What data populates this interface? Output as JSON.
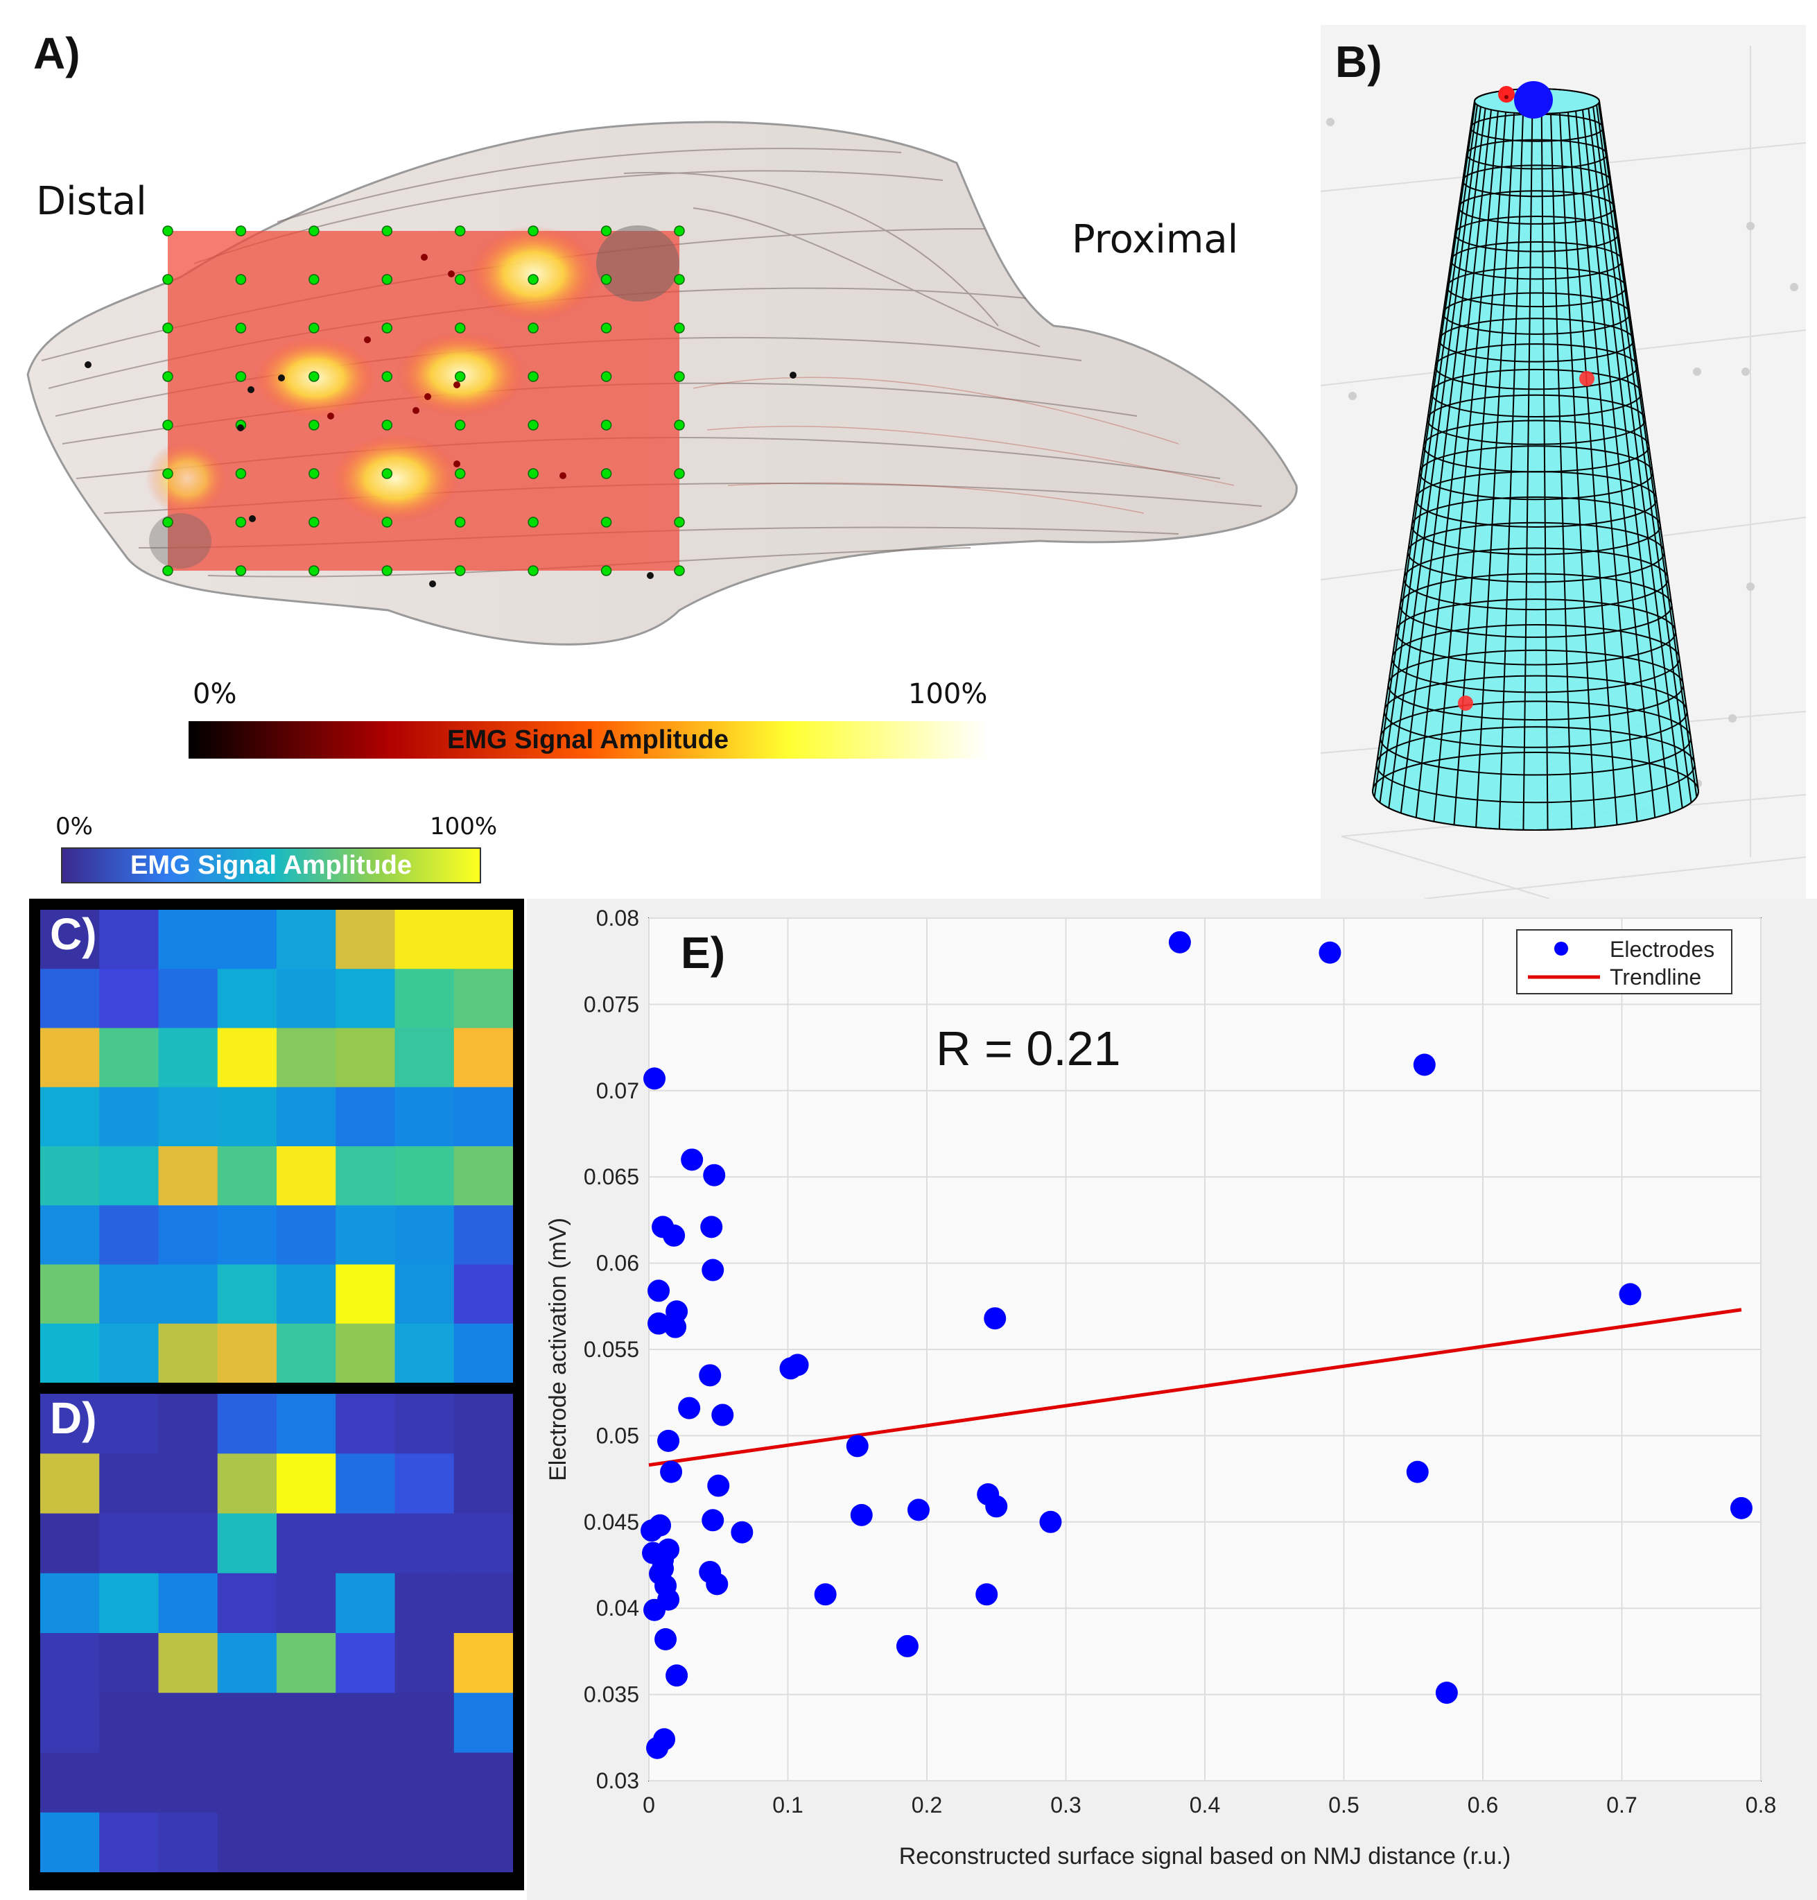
{
  "panel_a": {
    "letter": "A)",
    "distal_label": "Distal",
    "proximal_label": "Proximal",
    "colorbar": {
      "min_label": "0%",
      "max_label": "100%",
      "title": "EMG Signal Amplitude",
      "colors": [
        "#000000",
        "#b00000",
        "#ff5a00",
        "#ffff30",
        "#ffffff"
      ]
    },
    "electrode_grid": {
      "rows": 8,
      "cols": 8,
      "electrode_color": "#00e000"
    }
  },
  "panel_b": {
    "letter": "B)",
    "mesh_color": "#80f0f0"
  },
  "top_colorbar": {
    "min_label": "0%",
    "max_label": "100%",
    "title": "EMG Signal Amplitude",
    "colors": [
      "#3b2a8f",
      "#2f7cf0",
      "#15b8c8",
      "#8fd050",
      "#ffff20"
    ]
  },
  "panel_c": {
    "letter": "C)",
    "type": "heatmap",
    "grid": [
      [
        0.05,
        0.12,
        0.3,
        0.3,
        0.4,
        0.83,
        0.97,
        0.97
      ],
      [
        0.22,
        0.15,
        0.25,
        0.42,
        0.38,
        0.42,
        0.6,
        0.65
      ],
      [
        0.86,
        0.62,
        0.5,
        0.98,
        0.72,
        0.75,
        0.58,
        0.88
      ],
      [
        0.42,
        0.36,
        0.4,
        0.41,
        0.35,
        0.28,
        0.32,
        0.3
      ],
      [
        0.52,
        0.48,
        0.85,
        0.62,
        0.97,
        0.58,
        0.6,
        0.68
      ],
      [
        0.33,
        0.22,
        0.28,
        0.3,
        0.27,
        0.36,
        0.34,
        0.22
      ],
      [
        0.68,
        0.35,
        0.35,
        0.48,
        0.38,
        1.0,
        0.35,
        0.14
      ],
      [
        0.45,
        0.4,
        0.8,
        0.85,
        0.58,
        0.74,
        0.4,
        0.3
      ]
    ]
  },
  "panel_d": {
    "letter": "D)",
    "type": "heatmap",
    "grid": [
      [
        0.08,
        0.08,
        0.06,
        0.22,
        0.28,
        0.1,
        0.08,
        0.06
      ],
      [
        0.82,
        0.06,
        0.06,
        0.78,
        1.0,
        0.25,
        0.18,
        0.06
      ],
      [
        0.05,
        0.08,
        0.08,
        0.5,
        0.08,
        0.08,
        0.08,
        0.08
      ],
      [
        0.34,
        0.42,
        0.3,
        0.1,
        0.08,
        0.36,
        0.06,
        0.06
      ],
      [
        0.08,
        0.06,
        0.8,
        0.36,
        0.68,
        0.16,
        0.06,
        0.9
      ],
      [
        0.08,
        0.05,
        0.05,
        0.05,
        0.05,
        0.05,
        0.05,
        0.28
      ],
      [
        0.05,
        0.05,
        0.05,
        0.05,
        0.05,
        0.05,
        0.05,
        0.05
      ],
      [
        0.32,
        0.1,
        0.08,
        0.05,
        0.05,
        0.05,
        0.05,
        0.05
      ]
    ]
  },
  "chart_data": {
    "type": "scatter",
    "panel_letter": "E)",
    "annotation": "R = 0.21",
    "xlabel": "Reconstructed surface signal based on NMJ distance (r.u.)",
    "ylabel": "Electrode activation (mV)",
    "xlim": [
      0,
      0.8
    ],
    "ylim": [
      0.03,
      0.08
    ],
    "xticks": [
      "0",
      "0.1",
      "0.2",
      "0.3",
      "0.4",
      "0.5",
      "0.6",
      "0.7",
      "0.8"
    ],
    "yticks": [
      "0.03",
      "0.035",
      "0.04",
      "0.045",
      "0.05",
      "0.055",
      "0.06",
      "0.065",
      "0.07",
      "0.075",
      "0.08"
    ],
    "grid": true,
    "legend": {
      "position": "top-right",
      "entries": [
        "Electrodes",
        "Trendline"
      ]
    },
    "series": [
      {
        "name": "Electrodes",
        "color": "#0000ff",
        "points": [
          [
            0.382,
            0.0786
          ],
          [
            0.49,
            0.078
          ],
          [
            0.558,
            0.0715
          ],
          [
            0.004,
            0.0707
          ],
          [
            0.031,
            0.066
          ],
          [
            0.047,
            0.0651
          ],
          [
            0.01,
            0.0621
          ],
          [
            0.045,
            0.0621
          ],
          [
            0.018,
            0.0616
          ],
          [
            0.046,
            0.0596
          ],
          [
            0.007,
            0.0584
          ],
          [
            0.706,
            0.0582
          ],
          [
            0.02,
            0.0572
          ],
          [
            0.249,
            0.0568
          ],
          [
            0.007,
            0.0565
          ],
          [
            0.019,
            0.0563
          ],
          [
            0.102,
            0.0539
          ],
          [
            0.107,
            0.0541
          ],
          [
            0.044,
            0.0535
          ],
          [
            0.029,
            0.0516
          ],
          [
            0.053,
            0.0512
          ],
          [
            0.014,
            0.0497
          ],
          [
            0.15,
            0.0494
          ],
          [
            0.016,
            0.0479
          ],
          [
            0.553,
            0.0479
          ],
          [
            0.05,
            0.0471
          ],
          [
            0.244,
            0.0466
          ],
          [
            0.194,
            0.0457
          ],
          [
            0.25,
            0.0459
          ],
          [
            0.786,
            0.0458
          ],
          [
            0.153,
            0.0454
          ],
          [
            0.046,
            0.0451
          ],
          [
            0.289,
            0.045
          ],
          [
            0.008,
            0.0448
          ],
          [
            0.002,
            0.0445
          ],
          [
            0.067,
            0.0444
          ],
          [
            0.014,
            0.0434
          ],
          [
            0.003,
            0.0432
          ],
          [
            0.01,
            0.0428
          ],
          [
            0.01,
            0.0423
          ],
          [
            0.044,
            0.0421
          ],
          [
            0.008,
            0.042
          ],
          [
            0.049,
            0.0414
          ],
          [
            0.012,
            0.0413
          ],
          [
            0.127,
            0.0408
          ],
          [
            0.243,
            0.0408
          ],
          [
            0.014,
            0.0405
          ],
          [
            0.004,
            0.0399
          ],
          [
            0.012,
            0.0382
          ],
          [
            0.186,
            0.0378
          ],
          [
            0.02,
            0.0361
          ],
          [
            0.574,
            0.0351
          ],
          [
            0.011,
            0.0324
          ],
          [
            0.006,
            0.0319
          ]
        ]
      },
      {
        "name": "Trendline",
        "color": "#e00000",
        "line": [
          [
            0,
            0.0483
          ],
          [
            0.786,
            0.0573
          ]
        ]
      }
    ]
  }
}
